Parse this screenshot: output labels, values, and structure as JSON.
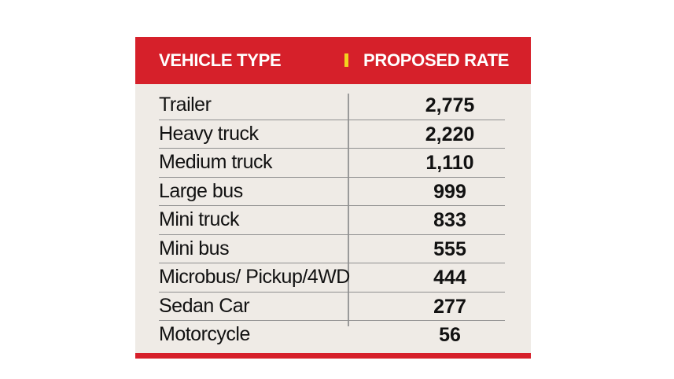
{
  "table": {
    "headers": {
      "vehicle_type": "VEHICLE TYPE",
      "proposed_rate": "PROPOSED RATE"
    },
    "rows": [
      {
        "vehicle_type": "Trailer",
        "rate": "2,775"
      },
      {
        "vehicle_type": "Heavy truck",
        "rate": "2,220"
      },
      {
        "vehicle_type": "Medium truck",
        "rate": "1,110"
      },
      {
        "vehicle_type": "Large bus",
        "rate": "999"
      },
      {
        "vehicle_type": "Mini truck",
        "rate": "833"
      },
      {
        "vehicle_type": "Mini bus",
        "rate": "555"
      },
      {
        "vehicle_type": "Microbus/ Pickup/4WD",
        "rate": "444"
      },
      {
        "vehicle_type": "Sedan Car",
        "rate": "277"
      },
      {
        "vehicle_type": "Motorcycle",
        "rate": "56"
      }
    ]
  },
  "colors": {
    "header_bg": "#d6202a",
    "header_separator": "#f3d21f",
    "body_bg": "#efebe6"
  }
}
